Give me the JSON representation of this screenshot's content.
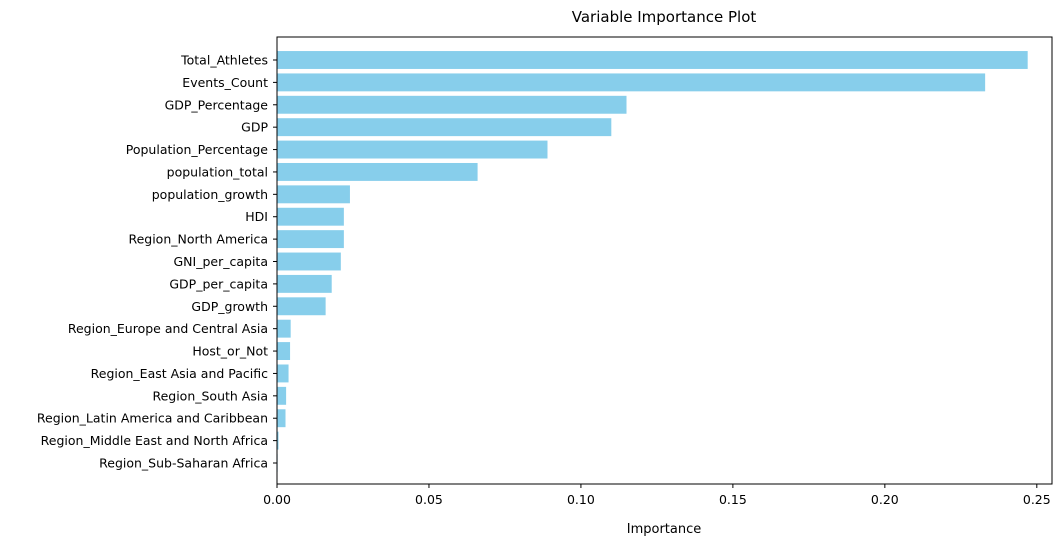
{
  "chart_data": {
    "type": "bar",
    "orientation": "horizontal",
    "title": "Variable Importance Plot",
    "xlabel": "Importance",
    "ylabel": "",
    "xlim": [
      0,
      0.255
    ],
    "xticks": [
      0.0,
      0.05,
      0.1,
      0.15,
      0.2,
      0.25
    ],
    "xtick_labels": [
      "0.00",
      "0.05",
      "0.10",
      "0.15",
      "0.20",
      "0.25"
    ],
    "grid": false,
    "bar_color": "#87CEEB",
    "categories": [
      "Total_Athletes",
      "Events_Count",
      "GDP_Percentage",
      "GDP",
      "Population_Percentage",
      "population_total",
      "population_growth",
      "HDI",
      "Region_North America",
      "GNI_per_capita",
      "GDP_per_capita",
      "GDP_growth",
      "Region_Europe and Central Asia",
      "Host_or_Not",
      "Region_East Asia and Pacific",
      "Region_South Asia",
      "Region_Latin America and Caribbean",
      "Region_Middle East and North Africa",
      "Region_Sub-Saharan Africa"
    ],
    "values": [
      0.247,
      0.233,
      0.115,
      0.11,
      0.089,
      0.066,
      0.024,
      0.022,
      0.022,
      0.021,
      0.018,
      0.016,
      0.0045,
      0.0043,
      0.0038,
      0.003,
      0.0028,
      0.0005,
      0.0002
    ]
  }
}
